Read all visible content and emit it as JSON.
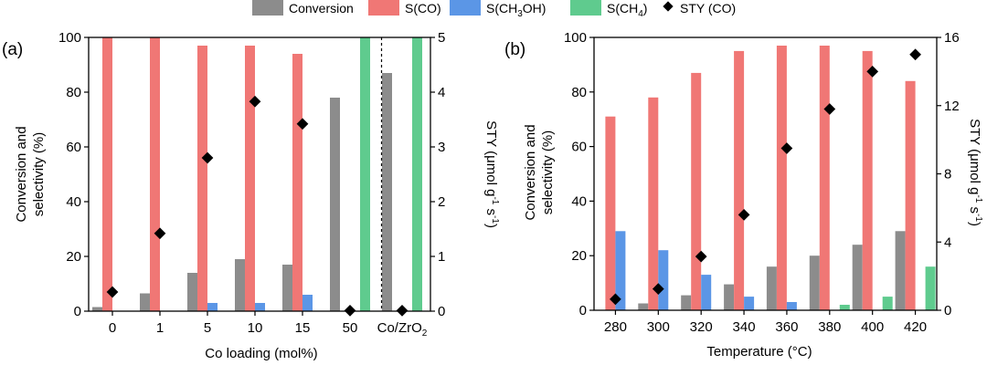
{
  "colors": {
    "conversion": "#8c8c8c",
    "s_co": "#f07775",
    "s_ch3oh": "#5b96e6",
    "s_ch4": "#5fcb8e",
    "sty": "#000000"
  },
  "legend": {
    "conversion": "Conversion",
    "s_co": "S(CO)",
    "s_ch3oh_prefix": "S(CH",
    "s_ch3oh_sub": "3",
    "s_ch3oh_suffix": "OH)",
    "s_ch4_prefix": "S(CH",
    "s_ch4_sub": "4",
    "s_ch4_suffix": ")",
    "sty": "STY (CO)"
  },
  "chart_data": [
    {
      "panel_label": "(a)",
      "type": "bar",
      "categories": [
        "0",
        "1",
        "5",
        "10",
        "15",
        "50",
        "Co/ZrO2"
      ],
      "category_display": {
        "last_prefix": "Co/ZrO",
        "last_sub": "2"
      },
      "xlabel": "Co loading (mol%)",
      "ylabel_line1": "Conversion and",
      "ylabel_line2": "selectivity (%)",
      "y2label_prefix": "STY (μmol g",
      "y2label_sup1": "-1",
      "y2label_mid": " s",
      "y2label_sup2": "-1",
      "y2label_suffix": ")",
      "ylim": [
        0,
        100
      ],
      "y2lim": [
        0,
        5
      ],
      "yticks": [
        0,
        20,
        40,
        60,
        80,
        100
      ],
      "y2ticks": [
        0,
        1,
        2,
        3,
        4,
        5
      ],
      "series": [
        {
          "name": "Conversion",
          "key": "conversion",
          "values": [
            1.5,
            6.5,
            14,
            19,
            17,
            78,
            87
          ]
        },
        {
          "name": "S(CO)",
          "key": "s_co",
          "values": [
            100,
            100,
            97,
            97,
            94,
            0,
            0
          ]
        },
        {
          "name": "S(CH3OH)",
          "key": "s_ch3oh",
          "values": [
            0,
            0,
            3,
            3,
            6,
            0,
            0
          ]
        },
        {
          "name": "S(CH4)",
          "key": "s_ch4",
          "values": [
            0,
            0,
            0,
            0,
            0,
            100,
            100
          ]
        }
      ],
      "sty": {
        "name": "STY (CO)",
        "values": [
          0.35,
          1.42,
          2.8,
          3.83,
          3.42,
          0.01,
          0.01
        ]
      },
      "divider_after_index": 5
    },
    {
      "panel_label": "(b)",
      "type": "bar",
      "categories": [
        "280",
        "300",
        "320",
        "340",
        "360",
        "380",
        "400",
        "420"
      ],
      "xlabel": "Temperature (°C)",
      "ylabel_line1": "Conversion and",
      "ylabel_line2": "selectivity (%)",
      "y2label_prefix": "STY (μmol g",
      "y2label_sup1": "-1",
      "y2label_mid": " s",
      "y2label_sup2": "-1",
      "y2label_suffix": ")",
      "ylim": [
        0,
        100
      ],
      "y2lim": [
        0,
        16
      ],
      "yticks": [
        0,
        20,
        40,
        60,
        80,
        100
      ],
      "y2ticks": [
        0,
        4,
        8,
        12,
        16
      ],
      "series": [
        {
          "name": "Conversion",
          "key": "conversion",
          "values": [
            0,
            2.5,
            5.5,
            9.5,
            16,
            20,
            24,
            29
          ]
        },
        {
          "name": "S(CO)",
          "key": "s_co",
          "values": [
            71,
            78,
            87,
            95,
            97,
            97,
            95,
            84
          ]
        },
        {
          "name": "S(CH3OH)",
          "key": "s_ch3oh",
          "values": [
            29,
            22,
            13,
            5,
            3,
            0,
            0,
            0
          ]
        },
        {
          "name": "S(CH4)",
          "key": "s_ch4",
          "values": [
            0,
            0,
            0,
            0,
            0,
            2,
            5,
            16
          ]
        }
      ],
      "sty": {
        "name": "STY (CO)",
        "values": [
          0.65,
          1.25,
          3.15,
          5.6,
          9.5,
          11.8,
          14,
          15
        ]
      }
    }
  ]
}
